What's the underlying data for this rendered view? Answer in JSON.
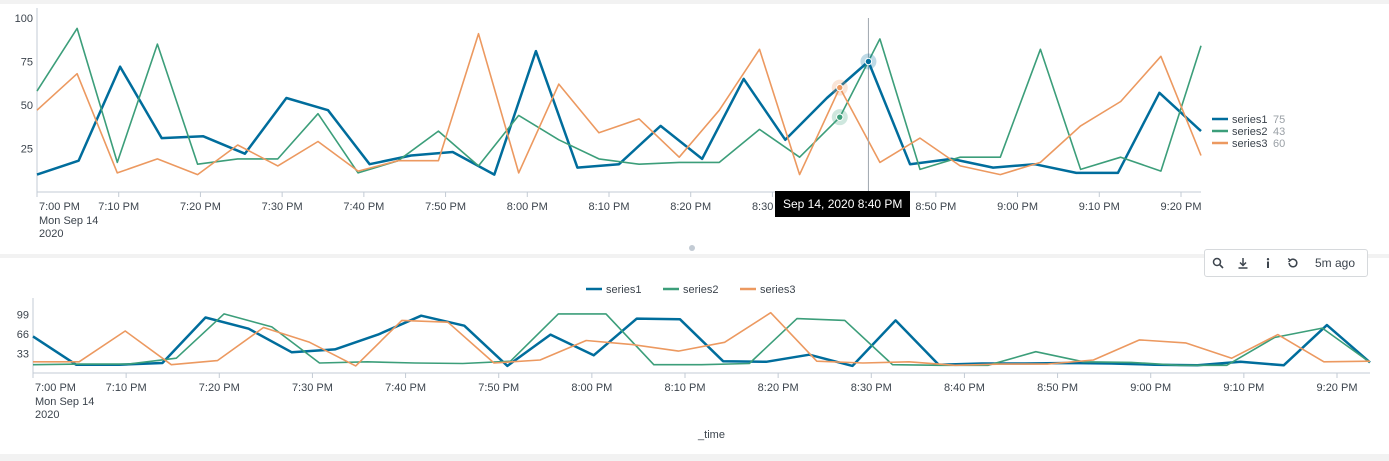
{
  "colors": {
    "series1": "#006d9c",
    "series2": "#3c9e7a",
    "series3": "#ec9960",
    "axis": "#c3cbd4",
    "text": "#3c444d"
  },
  "tooltip": {
    "text": "Sep 14, 2020 8:40 PM"
  },
  "toolbar": {
    "zoom_icon": "search-icon",
    "download_icon": "download-icon",
    "info_icon": "info-icon",
    "refresh_icon": "refresh-icon",
    "ago_label": "5m ago"
  },
  "legend_right": [
    {
      "name": "series1",
      "value": "75"
    },
    {
      "name": "series2",
      "value": "43"
    },
    {
      "name": "series3",
      "value": "60"
    }
  ],
  "legend_top": [
    "series1",
    "series2",
    "series3"
  ],
  "chart_data": [
    {
      "type": "line",
      "x_tick_labels": [
        "7:00 PM",
        "7:10 PM",
        "7:20 PM",
        "7:30 PM",
        "7:40 PM",
        "7:50 PM",
        "8:00 PM",
        "8:10 PM",
        "8:20 PM",
        "8:30 PM",
        "8:40 PM",
        "8:50 PM",
        "9:00 PM",
        "9:10 PM",
        "9:20 PM"
      ],
      "x_tick_sublabels": [
        "Mon Sep 14",
        "2020"
      ],
      "y_ticks": [
        25,
        50,
        75,
        100
      ],
      "ylim": [
        0,
        100
      ],
      "highlight_index": 20,
      "legend": "right",
      "series": [
        {
          "name": "series1",
          "values": [
            10,
            18,
            72,
            31,
            32,
            22,
            54,
            47,
            16,
            21,
            23,
            10,
            81,
            14,
            16,
            38,
            19,
            65,
            30,
            54,
            75,
            16,
            19,
            14,
            16,
            11,
            11,
            57,
            35
          ]
        },
        {
          "name": "series2",
          "values": [
            58,
            94,
            17,
            85,
            16,
            19,
            19,
            45,
            11,
            18,
            35,
            15,
            44,
            30,
            19,
            16,
            17,
            17,
            36,
            20,
            43,
            88,
            13,
            20,
            20,
            82,
            13,
            20,
            12,
            84
          ]
        },
        {
          "name": "series3",
          "values": [
            47,
            68,
            11,
            19,
            10,
            27,
            15,
            29,
            12,
            18,
            18,
            91,
            11,
            62,
            34,
            42,
            20,
            47,
            82,
            10,
            60,
            17,
            31,
            15,
            10,
            17,
            38,
            52,
            78,
            21
          ]
        }
      ]
    },
    {
      "type": "line",
      "x_tick_labels": [
        "7:00 PM",
        "7:10 PM",
        "7:20 PM",
        "7:30 PM",
        "7:40 PM",
        "7:50 PM",
        "8:00 PM",
        "8:10 PM",
        "8:20 PM",
        "8:30 PM",
        "8:40 PM",
        "8:50 PM",
        "9:00 PM",
        "9:10 PM",
        "9:20 PM"
      ],
      "x_tick_sublabels": [
        "Mon Sep 14",
        "2020"
      ],
      "xlabel": "_time",
      "y_ticks": [
        33,
        66,
        99
      ],
      "ylim": [
        0,
        110
      ],
      "legend": "top",
      "series": [
        {
          "name": "series1",
          "values": [
            62,
            14,
            14,
            17,
            94,
            75,
            35,
            40,
            65,
            97,
            80,
            12,
            65,
            30,
            92,
            91,
            20,
            19,
            31,
            12,
            89,
            14,
            16,
            16,
            17,
            16,
            14,
            13,
            19,
            13,
            81,
            18
          ]
        },
        {
          "name": "series2",
          "values": [
            14,
            15,
            15,
            25,
            100,
            78,
            17,
            19,
            17,
            16,
            20,
            100,
            100,
            14,
            14,
            16,
            92,
            89,
            14,
            13,
            13,
            36,
            19,
            18,
            13,
            13,
            60,
            76,
            18
          ]
        },
        {
          "name": "series3",
          "values": [
            19,
            19,
            71,
            14,
            21,
            77,
            52,
            12,
            89,
            86,
            17,
            22,
            55,
            48,
            37,
            52,
            102,
            20,
            17,
            19,
            13,
            15,
            15,
            22,
            56,
            51,
            25,
            65,
            19,
            20
          ]
        }
      ]
    }
  ]
}
